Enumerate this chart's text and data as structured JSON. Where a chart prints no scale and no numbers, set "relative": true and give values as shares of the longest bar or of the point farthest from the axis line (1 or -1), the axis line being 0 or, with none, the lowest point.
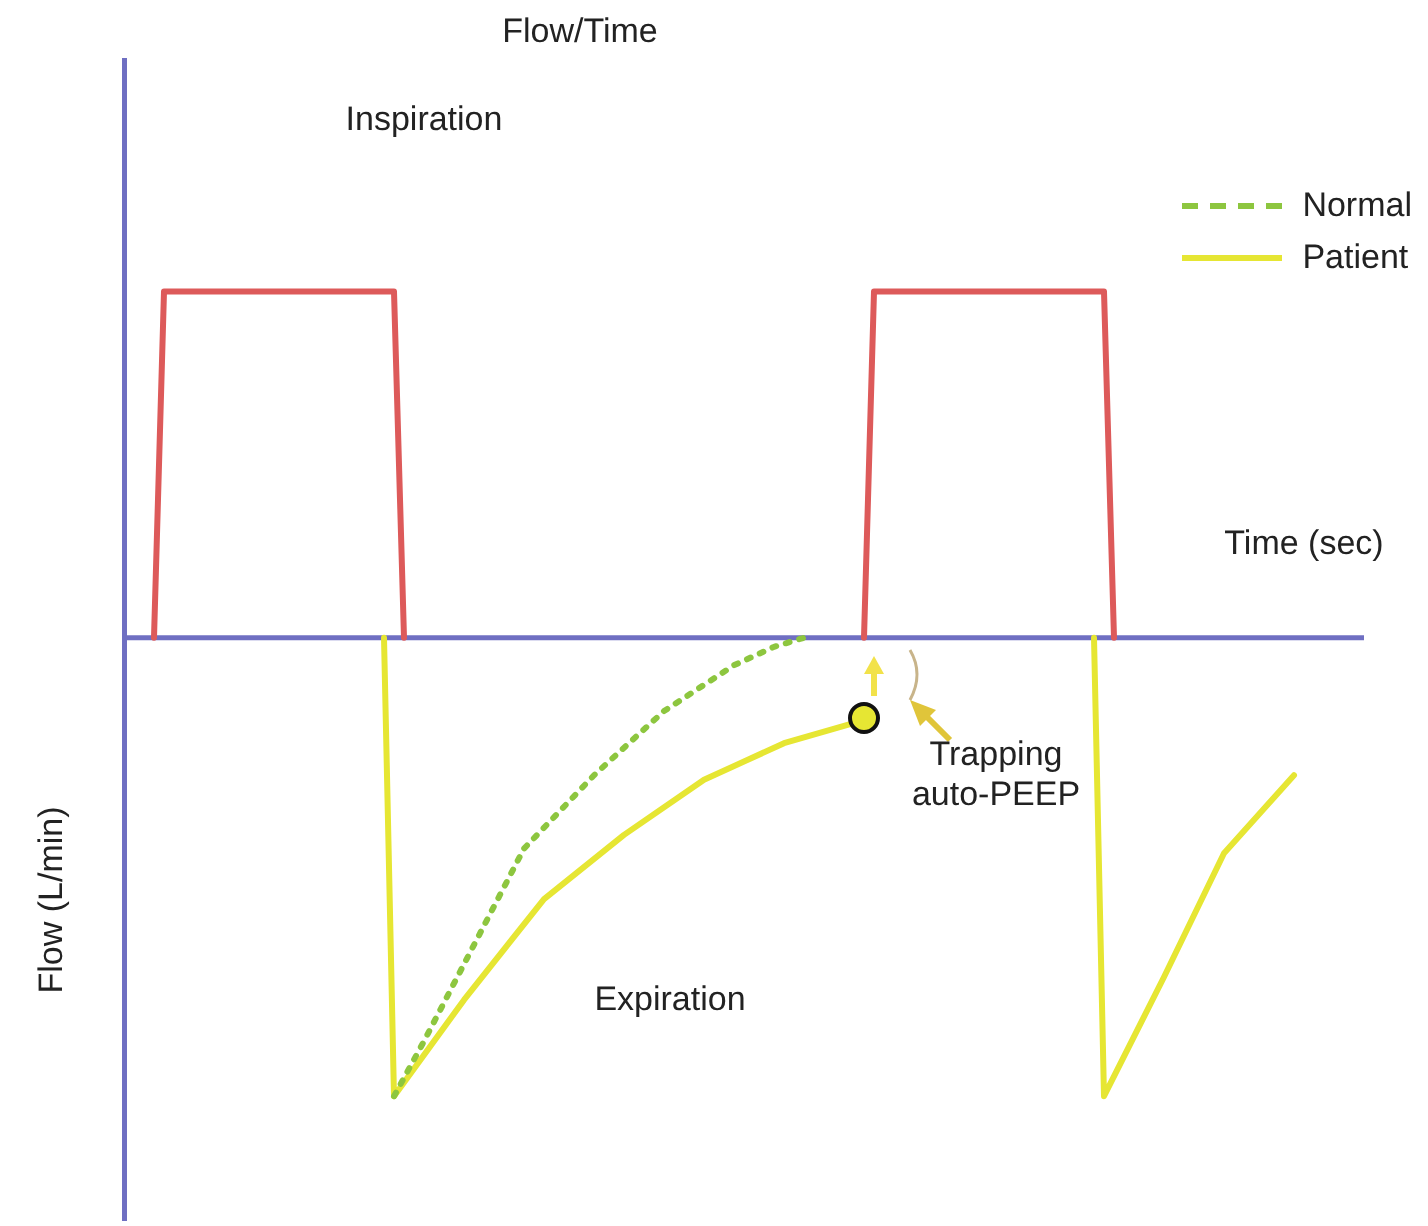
{
  "chart_data": {
    "type": "line",
    "title": "Flow/Time",
    "xlabel": "Time (sec)",
    "ylabel": "Flow (L/min)",
    "relative": true,
    "legend": "top right",
    "annotations": [
      "Inspiration",
      "Expiration",
      "Trapping\nauto-PEEP"
    ],
    "ref_lines": [
      {
        "axis": "y",
        "value": 0,
        "color": "#6f6fc2"
      }
    ],
    "categories": [
      null,
      null,
      null,
      null,
      null,
      null,
      null,
      null,
      null,
      null,
      null,
      null,
      null,
      null,
      null,
      null,
      null,
      null,
      null,
      null,
      null,
      null,
      null,
      null,
      null,
      null,
      null,
      null,
      null,
      null,
      null,
      null,
      null,
      null,
      null,
      null,
      null,
      null,
      null,
      null,
      null,
      null,
      null,
      null,
      null,
      null,
      null,
      null,
      null,
      null,
      null,
      null,
      null,
      null,
      null,
      null,
      null,
      null,
      null,
      null,
      null,
      null,
      null,
      null,
      null,
      null,
      null,
      null,
      null,
      null,
      null,
      null,
      null,
      null,
      null,
      null,
      null,
      null,
      null,
      null,
      null,
      null,
      null,
      null,
      null,
      null,
      null,
      null,
      null,
      null,
      null,
      null,
      null,
      null,
      null,
      null,
      null,
      null,
      null,
      null,
      null,
      null,
      null,
      null,
      null,
      null,
      null,
      null,
      null,
      null,
      null,
      null,
      null,
      null,
      null,
      null,
      null,
      null,
      null,
      null,
      null,
      null,
      null,
      null,
      null
    ],
    "series": [
      {
        "color": "#dd5a5a",
        "values": [
          null,
          null,
          null,
          0,
          0.755,
          0.755,
          0.755,
          0.755,
          0.755,
          0.755,
          0.755,
          0.755,
          0.755,
          0.755,
          0.755,
          0.755,
          0.755,
          0.755,
          0.755,
          0.755,
          0.755,
          0.755,
          0.755,
          0.755,
          0.755,
          0.755,
          0.755,
          0.755,
          0,
          null,
          null,
          null,
          null,
          null,
          null,
          null,
          null,
          null,
          null,
          null,
          null,
          null,
          null,
          null,
          null,
          null,
          null,
          null,
          null,
          null,
          null,
          null,
          null,
          null,
          null,
          null,
          null,
          null,
          null,
          null,
          null,
          null,
          null,
          null,
          null,
          null,
          null,
          null,
          null,
          null,
          null,
          null,
          null,
          null,
          0,
          0.755,
          0.755,
          0.755,
          0.755,
          0.755,
          0.755,
          0.755,
          0.755,
          0.755,
          0.755,
          0.755,
          0.755,
          0.755,
          0.755,
          0.755,
          0.755,
          0.755,
          0.755,
          0.755,
          0.755,
          0.755,
          0.755,
          0.755,
          0.755,
          0,
          null,
          null,
          null,
          null,
          null,
          null,
          null,
          null,
          null,
          null,
          null,
          null,
          null,
          null,
          null,
          null,
          null,
          null,
          null,
          null,
          null,
          null,
          null,
          null,
          null
        ]
      },
      {
        "name": "Normal",
        "color": "#8dc63f",
        "line_style": "dotted",
        "values": [
          null,
          null,
          null,
          null,
          null,
          null,
          null,
          null,
          null,
          null,
          null,
          null,
          null,
          null,
          null,
          null,
          null,
          null,
          null,
          null,
          null,
          null,
          null,
          null,
          null,
          null,
          null,
          -1,
          null,
          null,
          -0.88,
          null,
          null,
          null,
          null,
          -0.67,
          null,
          null,
          null,
          null,
          -0.46,
          null,
          null,
          null,
          null,
          null,
          null,
          -0.3,
          null,
          null,
          null,
          null,
          null,
          null,
          -0.16,
          null,
          null,
          null,
          null,
          null,
          null,
          -0.06,
          null,
          null,
          null,
          -0.02,
          null,
          null,
          0,
          null,
          null,
          null,
          null,
          null,
          null,
          null,
          null,
          null,
          null,
          null,
          null,
          null,
          null,
          null,
          null,
          null,
          null,
          null,
          null,
          null,
          null,
          null,
          null,
          null,
          null,
          null,
          null,
          null,
          null,
          null,
          null,
          null,
          null,
          null,
          null,
          null,
          null,
          null,
          null,
          null,
          null,
          null,
          null,
          null,
          null,
          null,
          null,
          null,
          null,
          null,
          null,
          null,
          null,
          null,
          null
        ]
      },
      {
        "name": "Patient",
        "color": "#e6e633",
        "line_style": "solid",
        "values": [
          null,
          null,
          null,
          null,
          null,
          null,
          null,
          null,
          null,
          null,
          null,
          null,
          null,
          null,
          null,
          null,
          null,
          null,
          null,
          null,
          null,
          null,
          null,
          null,
          null,
          null,
          0,
          -1,
          null,
          null,
          null,
          null,
          null,
          null,
          -0.79,
          null,
          null,
          null,
          null,
          null,
          null,
          null,
          -0.57,
          null,
          null,
          null,
          null,
          null,
          null,
          null,
          -0.43,
          null,
          null,
          null,
          null,
          null,
          null,
          null,
          -0.31,
          null,
          null,
          null,
          null,
          null,
          null,
          null,
          -0.23,
          null,
          null,
          null,
          null,
          null,
          null,
          null,
          -0.18,
          null,
          null,
          null,
          null,
          null,
          null,
          null,
          null,
          null,
          null,
          null,
          null,
          null,
          null,
          null,
          null,
          null,
          null,
          null,
          null,
          null,
          null,
          0,
          -1,
          null,
          null,
          null,
          null,
          null,
          -0.74,
          null,
          null,
          null,
          null,
          null,
          -0.47,
          null,
          null,
          null,
          null,
          null,
          null,
          -0.3,
          null,
          null,
          null,
          null,
          null,
          null,
          null
        ]
      }
    ]
  }
}
